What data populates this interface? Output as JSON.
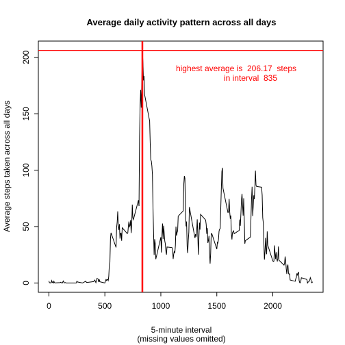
{
  "chart_data": {
    "type": "line",
    "title": "Average daily activity pattern across all days",
    "x_label": "5-minute interval",
    "x_label_note": "(missing values omitted)",
    "y_label": "Average steps taken across all days",
    "annotation": [
      "highest average is  206.17  steps",
      "in interval  835"
    ],
    "annotation_color": "#ff0000",
    "hline": 206.17,
    "vline": 835,
    "ref_color": "#ff0000",
    "xlim": [
      -94.2,
      2449.2
    ],
    "ylim": [
      -8.25,
      214.42
    ],
    "xticks": [
      0,
      500,
      1000,
      1500,
      2000
    ],
    "yticks": [
      0,
      50,
      100,
      150,
      200
    ],
    "series": [
      {
        "color": "#000000",
        "x": [
          0,
          5,
          10,
          15,
          20,
          25,
          30,
          35,
          40,
          45,
          50,
          55,
          100,
          105,
          110,
          115,
          120,
          125,
          130,
          135,
          140,
          145,
          150,
          155,
          200,
          230,
          245,
          250,
          255,
          300,
          330,
          335,
          340,
          400,
          410,
          420,
          430,
          440,
          445,
          450,
          455,
          500,
          505,
          510,
          515,
          520,
          525,
          530,
          535,
          540,
          545,
          550,
          555,
          600,
          605,
          610,
          615,
          620,
          625,
          630,
          635,
          640,
          645,
          650,
          655,
          700,
          705,
          710,
          715,
          720,
          725,
          730,
          735,
          740,
          745,
          750,
          755,
          800,
          805,
          810,
          815,
          820,
          825,
          830,
          835,
          840,
          845,
          850,
          855,
          900,
          905,
          910,
          915,
          920,
          925,
          930,
          935,
          940,
          945,
          950,
          955,
          1000,
          1005,
          1010,
          1015,
          1020,
          1025,
          1030,
          1035,
          1040,
          1045,
          1050,
          1055,
          1100,
          1105,
          1110,
          1115,
          1120,
          1125,
          1130,
          1135,
          1140,
          1145,
          1150,
          1155,
          1200,
          1205,
          1210,
          1215,
          1220,
          1225,
          1230,
          1235,
          1240,
          1245,
          1250,
          1255,
          1300,
          1305,
          1310,
          1315,
          1320,
          1325,
          1330,
          1335,
          1340,
          1345,
          1350,
          1355,
          1400,
          1405,
          1410,
          1415,
          1420,
          1425,
          1430,
          1435,
          1440,
          1445,
          1450,
          1455,
          1500,
          1505,
          1510,
          1515,
          1520,
          1525,
          1530,
          1535,
          1540,
          1545,
          1550,
          1555,
          1600,
          1605,
          1610,
          1615,
          1620,
          1625,
          1630,
          1635,
          1640,
          1645,
          1650,
          1655,
          1700,
          1705,
          1710,
          1715,
          1720,
          1725,
          1730,
          1735,
          1740,
          1745,
          1750,
          1755,
          1800,
          1805,
          1810,
          1815,
          1820,
          1825,
          1830,
          1835,
          1840,
          1845,
          1850,
          1855,
          1900,
          1905,
          1910,
          1915,
          1920,
          1925,
          1930,
          1935,
          1940,
          1945,
          1950,
          1955,
          2000,
          2005,
          2010,
          2015,
          2020,
          2025,
          2030,
          2035,
          2040,
          2045,
          2050,
          2055,
          2100,
          2105,
          2110,
          2115,
          2120,
          2125,
          2130,
          2135,
          2140,
          2145,
          2150,
          2155,
          2200,
          2205,
          2210,
          2215,
          2220,
          2225,
          2230,
          2235,
          2240,
          2245,
          2250,
          2255,
          2300,
          2305,
          2310,
          2315,
          2320,
          2325,
          2330,
          2335,
          2340,
          2345,
          2350,
          2355
        ],
        "values": [
          1.7,
          0.3,
          0.1,
          0.2,
          0.1,
          2.1,
          0.5,
          0.9,
          0,
          1.5,
          0.3,
          0.1,
          0.3,
          0.7,
          0.2,
          0.3,
          0,
          1.1,
          1.8,
          0.2,
          0.2,
          0.4,
          0.3,
          0,
          0,
          0,
          0,
          1.5,
          0.9,
          0,
          1.6,
          0.6,
          0.5,
          1.2,
          2.6,
          0.3,
          4.1,
          3.5,
          0.8,
          3.1,
          1.1,
          0,
          1.6,
          3,
          2.2,
          3.3,
          3,
          2.1,
          6.1,
          16,
          18.3,
          39.5,
          44.5,
          31.5,
          49.3,
          53.8,
          63.5,
          50,
          47.1,
          52.2,
          39.3,
          44,
          44.2,
          37.4,
          49,
          43.8,
          44.4,
          50.5,
          54.5,
          49.9,
          51,
          55.7,
          44.3,
          52.3,
          69.5,
          57.8,
          56.2,
          73.4,
          68.2,
          129.4,
          157.5,
          171.2,
          155.4,
          177.3,
          206.17,
          195.9,
          179.6,
          183.4,
          167,
          143.5,
          124,
          109.1,
          108.1,
          103.7,
          96,
          66.2,
          45.2,
          24.8,
          38.8,
          35,
          21.1,
          40.6,
          27,
          42.4,
          52.7,
          38.9,
          50.8,
          44.3,
          37.4,
          34.7,
          28.3,
          25.1,
          31.9,
          31.4,
          29.7,
          21.3,
          25.5,
          28.4,
          26.5,
          33.4,
          50,
          42,
          44.6,
          46,
          59.2,
          63.9,
          87.7,
          94.8,
          92.8,
          63.4,
          50.2,
          54.5,
          32.4,
          26.5,
          37.7,
          45.1,
          67.3,
          42.3,
          39.9,
          43.3,
          41,
          46.2,
          56.4,
          42.8,
          25.1,
          40,
          53.5,
          47.3,
          60.8,
          55.8,
          52,
          43.6,
          48.7,
          35.5,
          37.5,
          41.8,
          27.5,
          17.1,
          26.1,
          43.6,
          43.8,
          30,
          36.1,
          35.5,
          38.8,
          46,
          47.7,
          48.1,
          65.3,
          82.9,
          98.7,
          102.1,
          84,
          62.1,
          64.1,
          74.5,
          63.2,
          56.9,
          59.8,
          43.9,
          38.6,
          44.7,
          45.5,
          46.2,
          43.7,
          46.6,
          56.3,
          50.7,
          61.2,
          73.4,
          79.1,
          68.9,
          59.7,
          75.1,
          56.5,
          34.8,
          37.5,
          40.7,
          58,
          74.7,
          85.3,
          59.3,
          67.8,
          77.7,
          74.2,
          85.3,
          99.5,
          86.6,
          85.6,
          84.9,
          77.8,
          58,
          53.4,
          36.3,
          20.7,
          27.4,
          40,
          30.2,
          25.5,
          45.7,
          33.5,
          19.6,
          19,
          19.3,
          33.3,
          26.8,
          21.2,
          27.3,
          21.3,
          19.5,
          21.3,
          32.3,
          20.2,
          15.9,
          17.2,
          23.5,
          19.2,
          12.5,
          8,
          14.7,
          16.3,
          8.7,
          7.8,
          8.1,
          2.6,
          1.5,
          3.7,
          4.8,
          8.5,
          7.1,
          8.7,
          9.8,
          2.2,
          0.3,
          0.1,
          1.6,
          4.6,
          3.3,
          2.8,
          0,
          0.8,
          1,
          1.6,
          2.6,
          4.7,
          3.3,
          0.6,
          0.2,
          1.1
        ]
      }
    ]
  }
}
